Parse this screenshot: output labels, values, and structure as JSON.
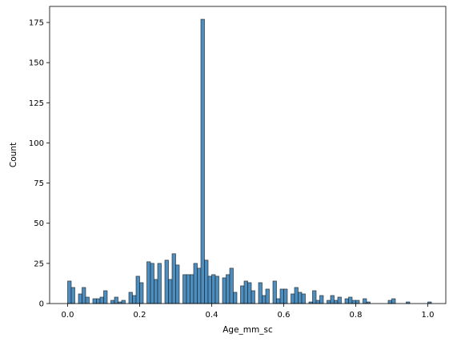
{
  "chart_data": {
    "type": "bar",
    "subtype": "histogram",
    "xlabel": "Age_mm_sc",
    "ylabel": "Count",
    "xlim": [
      -0.05,
      1.05
    ],
    "ylim": [
      0,
      185
    ],
    "bin_start": 0.0,
    "bin_width": 0.01,
    "x_ticks": [
      "0.0",
      "0.2",
      "0.4",
      "0.6",
      "0.8",
      "1.0"
    ],
    "y_ticks": [
      "0",
      "25",
      "50",
      "75",
      "100",
      "125",
      "150",
      "175"
    ],
    "values": [
      14,
      10,
      0,
      6,
      10,
      4,
      0,
      3,
      3,
      4,
      8,
      0,
      2,
      4,
      1,
      2,
      0,
      7,
      5,
      17,
      13,
      0,
      26,
      25,
      15,
      25,
      0,
      27,
      15,
      31,
      24,
      0,
      18,
      18,
      18,
      25,
      22,
      177,
      27,
      17,
      18,
      17,
      0,
      16,
      18,
      22,
      7,
      0,
      11,
      14,
      13,
      8,
      0,
      13,
      5,
      9,
      0,
      14,
      3,
      9,
      9,
      0,
      6,
      10,
      7,
      6,
      0,
      1,
      8,
      2,
      5,
      0,
      2,
      5,
      2,
      4,
      0,
      3,
      4,
      2,
      2,
      0,
      3,
      1,
      0,
      0,
      0,
      0,
      0,
      2,
      3,
      0,
      0,
      0,
      1,
      0,
      0,
      0,
      0,
      0,
      1
    ],
    "bar_color": "#4c8ebf",
    "bar_edge_color": "#1f1f1f",
    "grid": false,
    "legend": "none"
  }
}
